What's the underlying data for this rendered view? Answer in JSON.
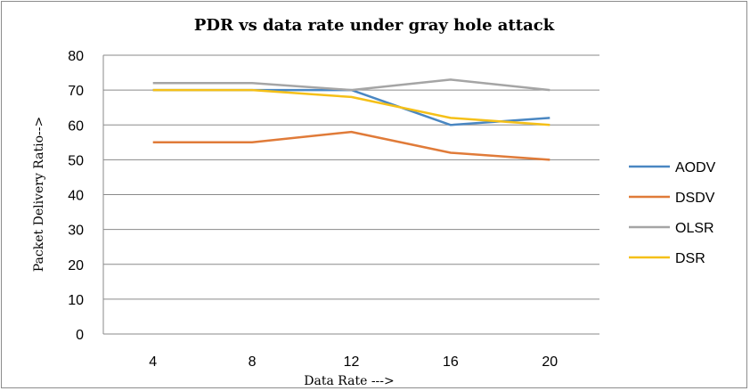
{
  "chart_data": {
    "type": "line",
    "title": "PDR vs data rate under gray hole attack",
    "xlabel": "Data Rate --->",
    "ylabel": "Packet Delivery Ratio-->",
    "categories": [
      "4",
      "8",
      "12",
      "16",
      "20"
    ],
    "ylim": [
      0,
      80
    ],
    "yticks": [
      0,
      10,
      20,
      30,
      40,
      50,
      60,
      70,
      80
    ],
    "grid": true,
    "legend_position": "right",
    "series": [
      {
        "name": "AODV",
        "color": "#4a87c2",
        "values": [
          70,
          70,
          70,
          60,
          62
        ]
      },
      {
        "name": "DSDV",
        "color": "#e07b39",
        "values": [
          55,
          55,
          58,
          52,
          50
        ]
      },
      {
        "name": "OLSR",
        "color": "#a5a5a5",
        "values": [
          72,
          72,
          70,
          73,
          70
        ]
      },
      {
        "name": "DSR",
        "color": "#f5c018",
        "values": [
          70,
          70,
          68,
          62,
          60
        ]
      }
    ]
  }
}
